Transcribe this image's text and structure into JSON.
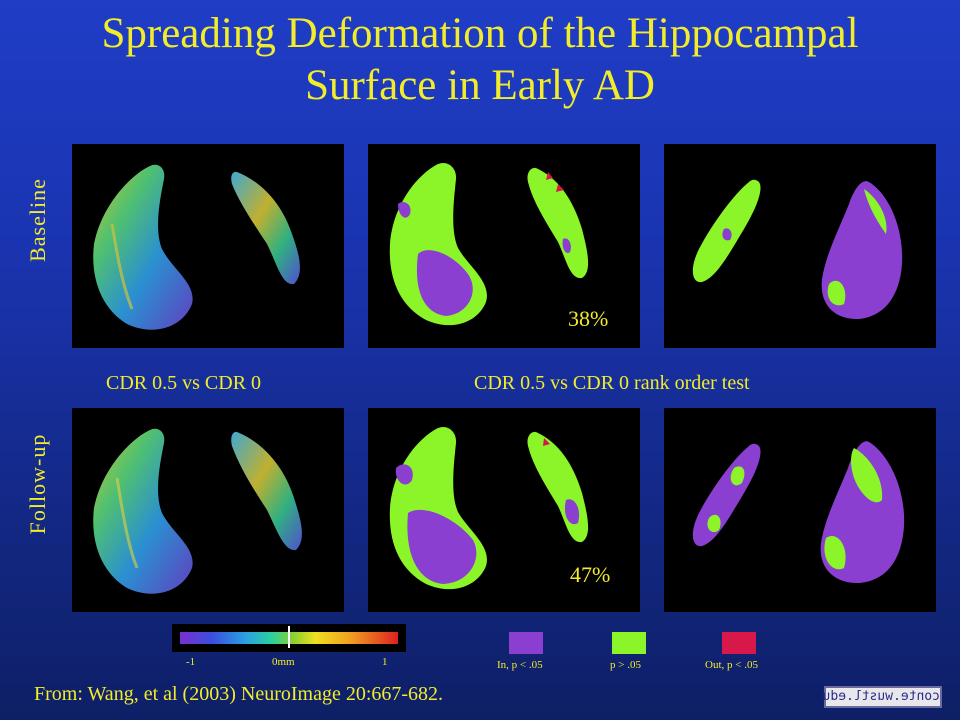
{
  "slide": {
    "title_line1": "Spreading Deformation of the Hippocampal",
    "title_line2": "Surface in Early AD"
  },
  "rows": {
    "baseline_label": "Baseline",
    "followup_label": "Follow-up"
  },
  "captions": {
    "left": "CDR 0.5 vs CDR 0",
    "right": "CDR 0.5 vs CDR 0 rank order test"
  },
  "percentages": {
    "baseline": "38%",
    "followup": "47%"
  },
  "colorbar": {
    "min_label": "-1",
    "mid_label": "0mm",
    "max_label": "1"
  },
  "legend": {
    "items": [
      {
        "label": "In, p < .05",
        "color": "#8a3fd0"
      },
      {
        "label": "p > .05",
        "color": "#8cf52a"
      },
      {
        "label": "Out, p < .05",
        "color": "#d8184a"
      }
    ]
  },
  "footer": {
    "source": "From: Wang, et al (2003) NeuroImage 20:667-682.",
    "logo_text": "conte.wustl.edu"
  },
  "colors": {
    "text_yellow": "#f2ec2a",
    "background_blue": "#1a34b0"
  }
}
